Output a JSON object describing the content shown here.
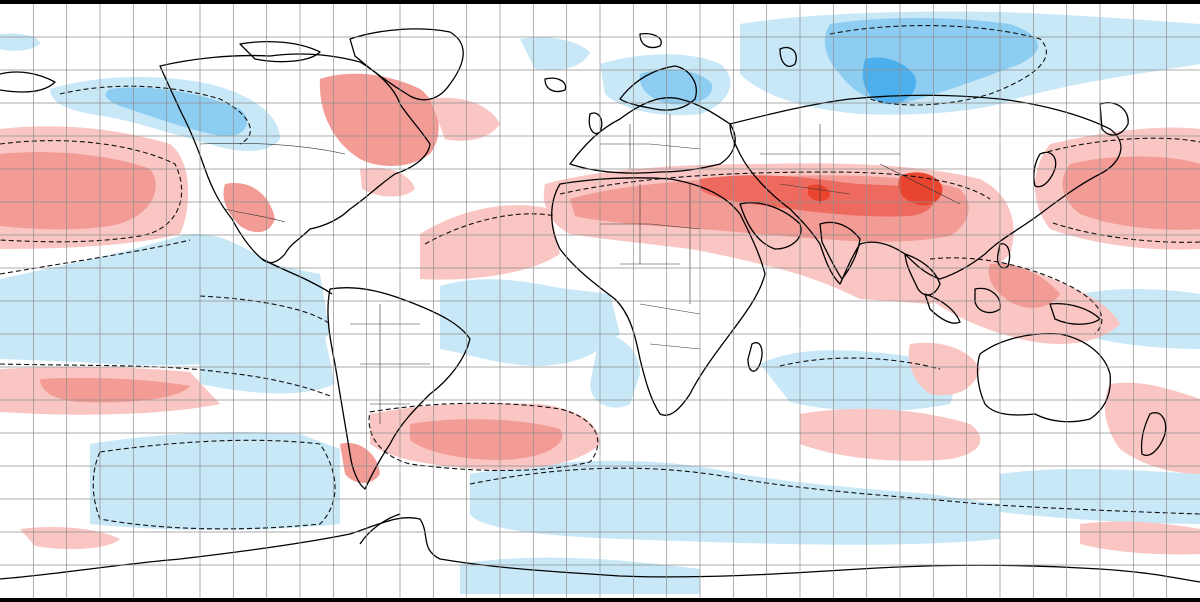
{
  "map": {
    "projection": "equirectangular",
    "grid_step_degrees": 10,
    "colors": {
      "background": "#ffffff",
      "frame": "#000000",
      "grid": "#8f8f8f",
      "coast": "#000000",
      "border": "#333333",
      "dashed_contour": "#111111",
      "warm_light": "#f9c6c3",
      "warm_medium": "#f39b95",
      "warm_strong": "#ef6a5e",
      "warm_extreme": "#e8442e",
      "cool_light": "#c8e8f8",
      "cool_medium": "#8ecdf2",
      "cool_strong": "#4db0ee",
      "cool_extreme": "#1f8fe6"
    },
    "anomaly_regions": [
      {
        "name": "north-pacific-warm",
        "sign": "warm",
        "level": "medium"
      },
      {
        "name": "hudson-bay-warm",
        "sign": "warm",
        "level": "medium"
      },
      {
        "name": "sahara-arabia-warm",
        "sign": "warm",
        "level": "medium"
      },
      {
        "name": "tibet-warm",
        "sign": "warm",
        "level": "extreme"
      },
      {
        "name": "west-siberia-cold",
        "sign": "cool",
        "level": "extreme"
      },
      {
        "name": "scandinavia-cold",
        "sign": "cool",
        "level": "medium"
      },
      {
        "name": "alaska-canada-cold",
        "sign": "cool",
        "level": "medium"
      },
      {
        "name": "tropical-pacific-cold",
        "sign": "cool",
        "level": "light"
      },
      {
        "name": "tropical-atlantic-cold",
        "sign": "cool",
        "level": "light"
      },
      {
        "name": "south-atlantic-warm",
        "sign": "warm",
        "level": "medium"
      },
      {
        "name": "south-indian-warm",
        "sign": "warm",
        "level": "light"
      },
      {
        "name": "southern-ocean-cold",
        "sign": "cool",
        "level": "light"
      },
      {
        "name": "maritime-continent-warm",
        "sign": "warm",
        "level": "light"
      }
    ]
  }
}
